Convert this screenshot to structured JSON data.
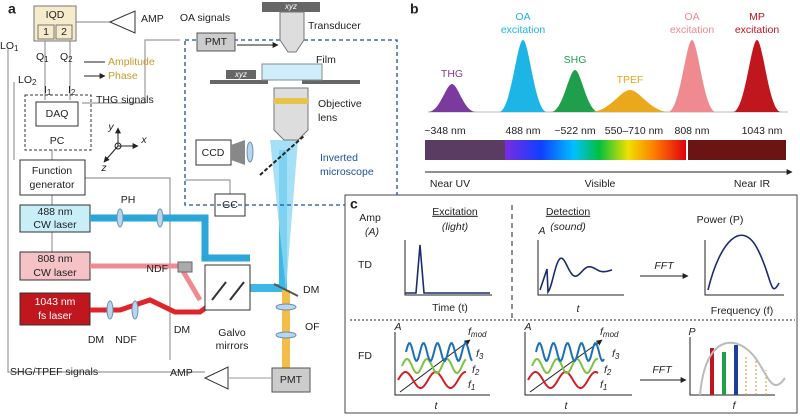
{
  "panel_a": {
    "label": "a",
    "iqd": {
      "title": "IQD",
      "port1": "1",
      "port2": "2"
    },
    "amp_top": "AMP",
    "oa_signals": "OA signals",
    "stage_top": "xyz",
    "transducer": "Transducer",
    "pmt_top": "PMT",
    "lo1": {
      "text": "LO",
      "sub": "1"
    },
    "lo2": {
      "text": "LO",
      "sub": "2"
    },
    "q1": {
      "text": "Q",
      "sub": "1"
    },
    "q2": {
      "text": "Q",
      "sub": "2"
    },
    "i1": {
      "text": "I",
      "sub": "1"
    },
    "i2": {
      "text": "I",
      "sub": "2"
    },
    "amplitude": "Amplitude",
    "phase": "Phase",
    "film": "Film",
    "stage_bottom": "xyz",
    "thg_signals": "THG signals",
    "daq": "DAQ",
    "pc": "PC",
    "objective": [
      "Objective",
      "lens"
    ],
    "ccd": "CCD",
    "microscope": [
      "Inverted",
      "microscope"
    ],
    "function_generator": [
      "Function",
      "generator"
    ],
    "axes": {
      "y": "y",
      "x": "x",
      "z": "z"
    },
    "laser_488": [
      "488 nm",
      "CW laser"
    ],
    "ph": "PH",
    "gc": "GC",
    "laser_808": [
      "808 nm",
      "CW laser"
    ],
    "ndf_upper": "NDF",
    "dm_right": "DM",
    "laser_1043": [
      "1043 nm",
      "fs laser"
    ],
    "dm_left": "DM",
    "ndf_lower": "NDF",
    "dm_mid": "DM",
    "galvo": [
      "Galvo",
      "mirrors"
    ],
    "of": "OF",
    "shg_tpef_signals": "SHG/TPEF signals",
    "amp_bottom": "AMP",
    "pmt_bottom": "PMT"
  },
  "panel_b": {
    "label": "b",
    "peaks": [
      {
        "label": [
          "THG"
        ],
        "wavelength": "~348 nm",
        "color": "#7b3a9e"
      },
      {
        "label": [
          "OA",
          "excitation"
        ],
        "wavelength": "488 nm",
        "color": "#1db4e6"
      },
      {
        "label": [
          "SHG"
        ],
        "wavelength": "~522 nm",
        "color": "#1f9e4c"
      },
      {
        "label": [
          "TPEF"
        ],
        "wavelength": "550–710 nm",
        "color": "#eaa81c"
      },
      {
        "label": [
          "OA",
          "excitation"
        ],
        "wavelength": "808 nm",
        "color": "#ee8a90"
      },
      {
        "label": [
          "MP",
          "excitation"
        ],
        "wavelength": "1043 nm",
        "color": "#c0161e"
      }
    ],
    "bands": [
      "Near UV",
      "Visible",
      "Near IR"
    ]
  },
  "panel_c": {
    "label": "c",
    "excitation": "Excitation",
    "excitation_note": "(light)",
    "detection": "Detection",
    "detection_note": "(sound)",
    "amp": "Amp",
    "amp_symbol": "(A)",
    "td": "TD",
    "fd": "FD",
    "time": "Time (t)",
    "td_det_y": "A",
    "td_det_x": "t",
    "fft_td": "FFT",
    "power": "Power (P)",
    "frequency": "Frequency (f)",
    "fd_exc_y": "A",
    "fd_exc_x": "t",
    "fd_exc_fmod": {
      "text": "f",
      "sub": "mod"
    },
    "fd_exc_f3": {
      "text": "f",
      "sub": "3"
    },
    "fd_exc_f2": {
      "text": "f",
      "sub": "2"
    },
    "fd_exc_f1": {
      "text": "f",
      "sub": "1"
    },
    "fd_det_y": "A",
    "fd_det_x": "t",
    "fd_det_fmod": {
      "text": "f",
      "sub": "mod"
    },
    "fd_det_f3": {
      "text": "f",
      "sub": "3"
    },
    "fd_det_f2": {
      "text": "f",
      "sub": "2"
    },
    "fd_det_f1": {
      "text": "f",
      "sub": "1"
    },
    "fft_fd": "FFT",
    "fd_pow_y": "P",
    "fd_pow_x": "f"
  }
}
